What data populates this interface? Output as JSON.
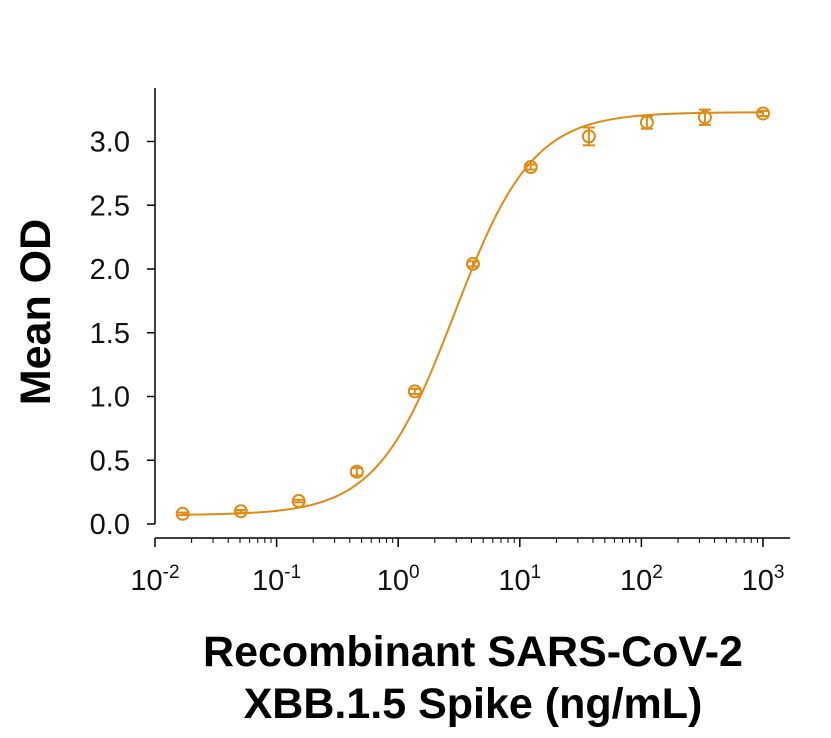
{
  "chart_data": {
    "type": "scatter",
    "title": "",
    "xlabel_lines": [
      "Recombinant SARS-CoV-2",
      "XBB.1.5 Spike (ng/mL)"
    ],
    "ylabel": "Mean OD",
    "x_scale": "log",
    "xlim": [
      0.01,
      1000
    ],
    "ylim": [
      0,
      3.3
    ],
    "x_ticks": [
      {
        "base": "10",
        "exp": "-2",
        "value": 0.01
      },
      {
        "base": "10",
        "exp": "-1",
        "value": 0.1
      },
      {
        "base": "10",
        "exp": "0",
        "value": 1
      },
      {
        "base": "10",
        "exp": "1",
        "value": 10
      },
      {
        "base": "10",
        "exp": "2",
        "value": 100
      },
      {
        "base": "10",
        "exp": "3",
        "value": 1000
      }
    ],
    "y_ticks": [
      "0.0",
      "0.5",
      "1.0",
      "1.5",
      "2.0",
      "2.5",
      "3.0"
    ],
    "grid": false,
    "legend": "none",
    "color": "#E08A14",
    "series": [
      {
        "marker": "open-circle",
        "fit": "4PL curve",
        "points": [
          {
            "x": 0.0169,
            "y": 0.08,
            "err": 0.01
          },
          {
            "x": 0.0508,
            "y": 0.1,
            "err": 0.01
          },
          {
            "x": 0.152,
            "y": 0.18,
            "err": 0.01
          },
          {
            "x": 0.457,
            "y": 0.41,
            "err": 0.03
          },
          {
            "x": 1.37,
            "y": 1.04,
            "err": 0.02
          },
          {
            "x": 4.12,
            "y": 2.04,
            "err": 0.02
          },
          {
            "x": 12.3,
            "y": 2.8,
            "err": 0.02
          },
          {
            "x": 37.0,
            "y": 3.04,
            "err": 0.07
          },
          {
            "x": 111,
            "y": 3.15,
            "err": 0.05
          },
          {
            "x": 333,
            "y": 3.19,
            "err": 0.06
          },
          {
            "x": 1000,
            "y": 3.22,
            "err": 0.02
          }
        ]
      }
    ]
  }
}
